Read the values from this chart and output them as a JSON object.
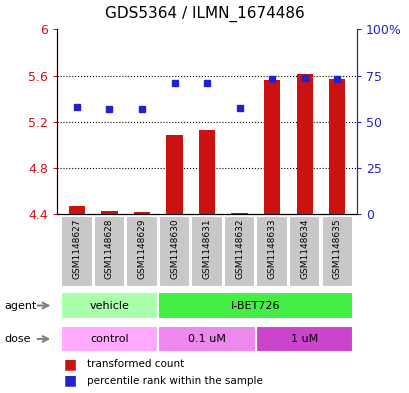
{
  "title": "GDS5364 / ILMN_1674486",
  "samples": [
    "GSM1148627",
    "GSM1148628",
    "GSM1148629",
    "GSM1148630",
    "GSM1148631",
    "GSM1148632",
    "GSM1148633",
    "GSM1148634",
    "GSM1148635"
  ],
  "bar_values": [
    4.47,
    4.43,
    4.42,
    5.09,
    5.13,
    4.41,
    5.56,
    5.61,
    5.57
  ],
  "bar_base": 4.4,
  "dot_values": [
    5.33,
    5.31,
    5.31,
    5.54,
    5.54,
    5.32,
    5.57,
    5.58,
    5.57
  ],
  "ylim_left": [
    4.4,
    6.0
  ],
  "ylim_right": [
    0,
    100
  ],
  "yticks_left": [
    4.4,
    4.8,
    5.2,
    5.6,
    6.0
  ],
  "ytick_labels_left": [
    "4.4",
    "4.8",
    "5.2",
    "5.6",
    "6"
  ],
  "yticks_right": [
    0,
    25,
    50,
    75,
    100
  ],
  "ytick_labels_right": [
    "0",
    "25",
    "50",
    "75",
    "100%"
  ],
  "bar_color": "#cc1111",
  "dot_color": "#2222cc",
  "agent_groups": [
    {
      "label": "vehicle",
      "start": 0,
      "end": 3,
      "color": "#aaffaa"
    },
    {
      "label": "I-BET726",
      "start": 3,
      "end": 9,
      "color": "#44ee44"
    }
  ],
  "dose_groups": [
    {
      "label": "control",
      "start": 0,
      "end": 3,
      "color": "#ffaaff"
    },
    {
      "label": "0.1 uM",
      "start": 3,
      "end": 6,
      "color": "#ee88ee"
    },
    {
      "label": "1 uM",
      "start": 6,
      "end": 9,
      "color": "#cc44cc"
    }
  ],
  "legend_bar_label": "transformed count",
  "legend_dot_label": "percentile rank within the sample",
  "agent_label": "agent",
  "dose_label": "dose",
  "background_color": "#ffffff"
}
